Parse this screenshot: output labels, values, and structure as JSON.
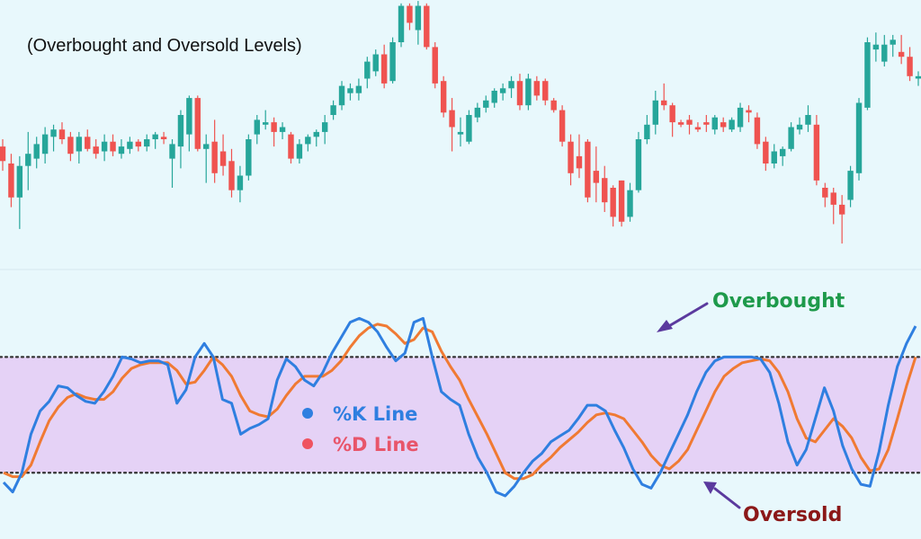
{
  "colors": {
    "background": "#e8f8fc",
    "panel_divider": "#d6e8ee",
    "zone_fill": "#e5d2f6",
    "level_line": "#333333",
    "bull": "#26a69a",
    "bear": "#ef5350",
    "k_line": "#2f7fe0",
    "d_line": "#f07a33",
    "overbought_text": "#1e9a4b",
    "oversold_text": "#8b1818",
    "arrow": "#5b3a9e",
    "legend_k_text": "#2f7fe0",
    "legend_d_text": "#e8556a",
    "legend_k_dot": "#2f7fe0",
    "legend_d_dot": "#ef5360"
  },
  "chart_data": [
    {
      "type": "candlestick",
      "title": "(Overbought and Oversold Levels)",
      "grid": false,
      "ylim": [
        0,
        100
      ],
      "candles": [
        {
          "o": 47,
          "h": 50,
          "l": 37,
          "c": 41
        },
        {
          "o": 40,
          "h": 44,
          "l": 22,
          "c": 26
        },
        {
          "o": 26,
          "h": 43,
          "l": 13,
          "c": 39
        },
        {
          "o": 39,
          "h": 53,
          "l": 29,
          "c": 44
        },
        {
          "o": 42,
          "h": 51,
          "l": 38,
          "c": 48
        },
        {
          "o": 44,
          "h": 55,
          "l": 40,
          "c": 52
        },
        {
          "o": 51,
          "h": 56,
          "l": 45,
          "c": 54
        },
        {
          "o": 54,
          "h": 57,
          "l": 48,
          "c": 50
        },
        {
          "o": 51,
          "h": 53,
          "l": 41,
          "c": 44
        },
        {
          "o": 45,
          "h": 53,
          "l": 40,
          "c": 51
        },
        {
          "o": 51,
          "h": 54,
          "l": 45,
          "c": 46
        },
        {
          "o": 47,
          "h": 50,
          "l": 42,
          "c": 44
        },
        {
          "o": 45,
          "h": 52,
          "l": 41,
          "c": 49
        },
        {
          "o": 49,
          "h": 52,
          "l": 43,
          "c": 45
        },
        {
          "o": 44,
          "h": 50,
          "l": 42,
          "c": 47
        },
        {
          "o": 46,
          "h": 51,
          "l": 44,
          "c": 49
        },
        {
          "o": 49,
          "h": 50,
          "l": 45,
          "c": 47
        },
        {
          "o": 47,
          "h": 52,
          "l": 45,
          "c": 50
        },
        {
          "o": 50,
          "h": 53,
          "l": 46,
          "c": 52
        },
        {
          "o": 51,
          "h": 53,
          "l": 48,
          "c": 50
        },
        {
          "o": 42,
          "h": 50,
          "l": 30,
          "c": 48
        },
        {
          "o": 47,
          "h": 62,
          "l": 38,
          "c": 60
        },
        {
          "o": 52,
          "h": 68,
          "l": 45,
          "c": 67
        },
        {
          "o": 67,
          "h": 68,
          "l": 45,
          "c": 46
        },
        {
          "o": 46,
          "h": 52,
          "l": 32,
          "c": 48
        },
        {
          "o": 49,
          "h": 58,
          "l": 32,
          "c": 36
        },
        {
          "o": 45,
          "h": 52,
          "l": 35,
          "c": 39
        },
        {
          "o": 41,
          "h": 46,
          "l": 26,
          "c": 29
        },
        {
          "o": 29,
          "h": 39,
          "l": 24,
          "c": 35
        },
        {
          "o": 35,
          "h": 52,
          "l": 33,
          "c": 50
        },
        {
          "o": 52,
          "h": 60,
          "l": 48,
          "c": 58
        },
        {
          "o": 56,
          "h": 62,
          "l": 54,
          "c": 57
        },
        {
          "o": 57,
          "h": 59,
          "l": 47,
          "c": 53
        },
        {
          "o": 53,
          "h": 57,
          "l": 50,
          "c": 55
        },
        {
          "o": 52,
          "h": 53,
          "l": 40,
          "c": 42
        },
        {
          "o": 42,
          "h": 50,
          "l": 40,
          "c": 48
        },
        {
          "o": 48,
          "h": 52,
          "l": 45,
          "c": 51
        },
        {
          "o": 51,
          "h": 54,
          "l": 47,
          "c": 53
        },
        {
          "o": 53,
          "h": 60,
          "l": 48,
          "c": 57
        },
        {
          "o": 60,
          "h": 66,
          "l": 58,
          "c": 64
        },
        {
          "o": 64,
          "h": 74,
          "l": 62,
          "c": 72
        },
        {
          "o": 69,
          "h": 73,
          "l": 66,
          "c": 71
        },
        {
          "o": 69,
          "h": 75,
          "l": 66,
          "c": 72
        },
        {
          "o": 75,
          "h": 84,
          "l": 71,
          "c": 82
        },
        {
          "o": 78,
          "h": 87,
          "l": 76,
          "c": 85
        },
        {
          "o": 85,
          "h": 89,
          "l": 71,
          "c": 73
        },
        {
          "o": 74,
          "h": 92,
          "l": 73,
          "c": 90
        },
        {
          "o": 90,
          "h": 106,
          "l": 88,
          "c": 105
        },
        {
          "o": 105,
          "h": 106,
          "l": 95,
          "c": 98
        },
        {
          "o": 95,
          "h": 107,
          "l": 89,
          "c": 105
        },
        {
          "o": 105,
          "h": 106,
          "l": 87,
          "c": 88
        },
        {
          "o": 88,
          "h": 90,
          "l": 71,
          "c": 73
        },
        {
          "o": 74,
          "h": 76,
          "l": 59,
          "c": 61
        },
        {
          "o": 62,
          "h": 67,
          "l": 45,
          "c": 55
        },
        {
          "o": 52,
          "h": 59,
          "l": 47,
          "c": 53
        },
        {
          "o": 49,
          "h": 62,
          "l": 48,
          "c": 60
        },
        {
          "o": 59,
          "h": 65,
          "l": 57,
          "c": 63
        },
        {
          "o": 63,
          "h": 68,
          "l": 61,
          "c": 66
        },
        {
          "o": 65,
          "h": 71,
          "l": 63,
          "c": 70
        },
        {
          "o": 69,
          "h": 73,
          "l": 66,
          "c": 71
        },
        {
          "o": 71,
          "h": 76,
          "l": 67,
          "c": 74
        },
        {
          "o": 74,
          "h": 77,
          "l": 62,
          "c": 64
        },
        {
          "o": 64,
          "h": 77,
          "l": 62,
          "c": 75
        },
        {
          "o": 74,
          "h": 76,
          "l": 66,
          "c": 68
        },
        {
          "o": 74,
          "h": 75,
          "l": 64,
          "c": 66
        },
        {
          "o": 66,
          "h": 67,
          "l": 61,
          "c": 62
        },
        {
          "o": 62,
          "h": 64,
          "l": 47,
          "c": 49
        },
        {
          "o": 49,
          "h": 52,
          "l": 31,
          "c": 36
        },
        {
          "o": 43,
          "h": 52,
          "l": 34,
          "c": 38
        },
        {
          "o": 49,
          "h": 50,
          "l": 24,
          "c": 26
        },
        {
          "o": 37,
          "h": 47,
          "l": 24,
          "c": 32
        },
        {
          "o": 34,
          "h": 39,
          "l": 20,
          "c": 24
        },
        {
          "o": 30,
          "h": 31,
          "l": 14,
          "c": 18
        },
        {
          "o": 33,
          "h": 33,
          "l": 14,
          "c": 16
        },
        {
          "o": 18,
          "h": 32,
          "l": 16,
          "c": 29
        },
        {
          "o": 29,
          "h": 53,
          "l": 28,
          "c": 50
        },
        {
          "o": 50,
          "h": 60,
          "l": 48,
          "c": 56
        },
        {
          "o": 56,
          "h": 70,
          "l": 52,
          "c": 66
        },
        {
          "o": 66,
          "h": 73,
          "l": 62,
          "c": 64
        },
        {
          "o": 64,
          "h": 65,
          "l": 51,
          "c": 57
        },
        {
          "o": 57,
          "h": 58,
          "l": 55,
          "c": 56
        },
        {
          "o": 58,
          "h": 60,
          "l": 52,
          "c": 56
        },
        {
          "o": 55,
          "h": 57,
          "l": 53,
          "c": 54
        },
        {
          "o": 57,
          "h": 60,
          "l": 53,
          "c": 56
        },
        {
          "o": 54,
          "h": 60,
          "l": 52,
          "c": 59
        },
        {
          "o": 57,
          "h": 59,
          "l": 53,
          "c": 55
        },
        {
          "o": 54,
          "h": 59,
          "l": 53,
          "c": 58
        },
        {
          "o": 55,
          "h": 65,
          "l": 53,
          "c": 63
        },
        {
          "o": 62,
          "h": 64,
          "l": 57,
          "c": 61
        },
        {
          "o": 59,
          "h": 61,
          "l": 46,
          "c": 48
        },
        {
          "o": 49,
          "h": 51,
          "l": 37,
          "c": 40
        },
        {
          "o": 40,
          "h": 48,
          "l": 38,
          "c": 45
        },
        {
          "o": 43,
          "h": 47,
          "l": 39,
          "c": 46
        },
        {
          "o": 46,
          "h": 57,
          "l": 45,
          "c": 55
        },
        {
          "o": 54,
          "h": 59,
          "l": 52,
          "c": 56
        },
        {
          "o": 56,
          "h": 64,
          "l": 53,
          "c": 60
        },
        {
          "o": 56,
          "h": 60,
          "l": 31,
          "c": 33
        },
        {
          "o": 30,
          "h": 32,
          "l": 22,
          "c": 26
        },
        {
          "o": 28,
          "h": 30,
          "l": 15,
          "c": 23
        },
        {
          "o": 23,
          "h": 27,
          "l": 7,
          "c": 19
        },
        {
          "o": 25,
          "h": 39,
          "l": 22,
          "c": 37
        },
        {
          "o": 36,
          "h": 67,
          "l": 33,
          "c": 65
        },
        {
          "o": 63,
          "h": 92,
          "l": 62,
          "c": 90
        },
        {
          "o": 87,
          "h": 94,
          "l": 82,
          "c": 89
        },
        {
          "o": 82,
          "h": 93,
          "l": 80,
          "c": 89
        },
        {
          "o": 89,
          "h": 93,
          "l": 84,
          "c": 91
        },
        {
          "o": 86,
          "h": 93,
          "l": 81,
          "c": 84
        },
        {
          "o": 84,
          "h": 88,
          "l": 74,
          "c": 76
        },
        {
          "o": 75,
          "h": 78,
          "l": 72,
          "c": 76
        }
      ]
    },
    {
      "type": "line",
      "ylim": [
        -12,
        123
      ],
      "reference_lines": [
        {
          "name": "Overbought",
          "value": 80
        },
        {
          "name": "Oversold",
          "value": 20
        }
      ],
      "legend": "center",
      "series": [
        {
          "name": "%K Line",
          "values": [
            15,
            10,
            20,
            40,
            52,
            57,
            65,
            64,
            60,
            57,
            56,
            62,
            70,
            80,
            79,
            77,
            78,
            78,
            76,
            56,
            63,
            80,
            87,
            80,
            58,
            56,
            40,
            43,
            45,
            48,
            68,
            79,
            75,
            68,
            65,
            72,
            82,
            90,
            98,
            100,
            98,
            93,
            85,
            78,
            82,
            98,
            100,
            80,
            62,
            58,
            55,
            40,
            28,
            20,
            10,
            8,
            13,
            20,
            26,
            30,
            36,
            39,
            42,
            48,
            55,
            55,
            52,
            42,
            33,
            22,
            14,
            12,
            20,
            30,
            40,
            50,
            62,
            72,
            78,
            80,
            80,
            80,
            80,
            79,
            72,
            56,
            36,
            24,
            32,
            48,
            64,
            52,
            34,
            22,
            14,
            13,
            31,
            55,
            75,
            87,
            96
          ]
        },
        {
          "name": "%D Line",
          "values": [
            20,
            18,
            18,
            24,
            36,
            47,
            54,
            59,
            61,
            59,
            58,
            58,
            62,
            69,
            74,
            76,
            77,
            77,
            77,
            73,
            66,
            67,
            73,
            80,
            76,
            70,
            60,
            52,
            50,
            49,
            53,
            60,
            66,
            70,
            70,
            70,
            73,
            78,
            85,
            91,
            95,
            97,
            96,
            92,
            87,
            89,
            95,
            93,
            83,
            75,
            68,
            58,
            49,
            40,
            30,
            20,
            17,
            17,
            19,
            24,
            28,
            33,
            37,
            41,
            46,
            50,
            51,
            50,
            48,
            42,
            36,
            29,
            24,
            22,
            26,
            32,
            42,
            52,
            62,
            70,
            74,
            77,
            78,
            79,
            78,
            72,
            62,
            48,
            38,
            36,
            42,
            48,
            44,
            38,
            28,
            21,
            22,
            32,
            48,
            65,
            80
          ]
        }
      ]
    }
  ],
  "annotations": {
    "overbought": "Overbought",
    "oversold": "Oversold"
  }
}
